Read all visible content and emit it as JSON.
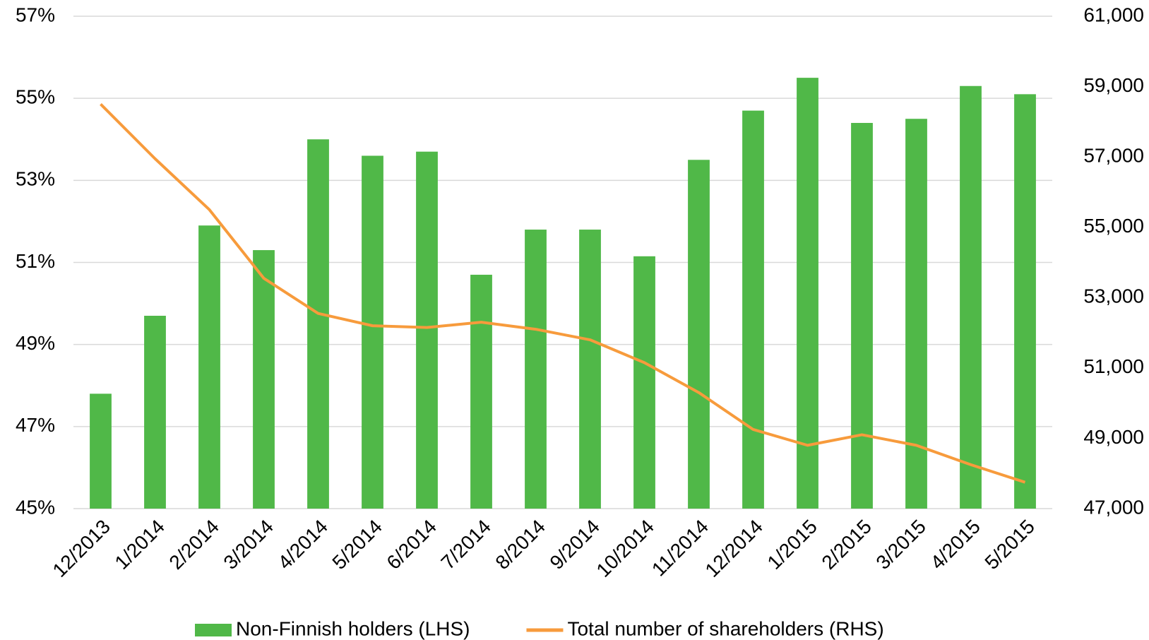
{
  "chart_data": {
    "type": "bar_line",
    "categories": [
      "12/2013",
      "1/2014",
      "2/2014",
      "3/2014",
      "4/2014",
      "5/2014",
      "6/2014",
      "7/2014",
      "8/2014",
      "9/2014",
      "10/2014",
      "11/2014",
      "12/2014",
      "1/2015",
      "2/2015",
      "3/2015",
      "4/2015",
      "5/2015"
    ],
    "series": [
      {
        "name": "Non-Finnish holders (LHS)",
        "color": "#50b848",
        "type": "bar",
        "values": [
          47.8,
          49.7,
          51.9,
          51.3,
          54.0,
          53.6,
          53.7,
          50.7,
          51.8,
          51.8,
          51.15,
          53.5,
          54.7,
          55.5,
          54.4,
          54.5,
          55.3,
          55.1
        ]
      },
      {
        "name": "Total number of shareholders (RHS)",
        "color": "#f79b3c",
        "type": "line",
        "axis": "y2",
        "values": [
          58500,
          56950,
          55500,
          53550,
          52550,
          52200,
          52150,
          52300,
          52100,
          51800,
          51150,
          50300,
          49250,
          48800,
          49100,
          48800,
          48250,
          47750
        ]
      }
    ],
    "ylim": [
      45,
      57
    ],
    "yticks": [
      {
        "value": 45,
        "label": "45%"
      },
      {
        "value": 47,
        "label": "47%"
      },
      {
        "value": 49,
        "label": "49%"
      },
      {
        "value": 51,
        "label": "51%"
      },
      {
        "value": 53,
        "label": "53%"
      },
      {
        "value": 55,
        "label": "55%"
      },
      {
        "value": 57,
        "label": "57%"
      }
    ],
    "y2lim": [
      47000,
      61000
    ],
    "y2ticks": [
      {
        "value": 47000,
        "label": "47,000"
      },
      {
        "value": 49000,
        "label": "49,000"
      },
      {
        "value": 51000,
        "label": "51,000"
      },
      {
        "value": 53000,
        "label": "53,000"
      },
      {
        "value": 55000,
        "label": "55,000"
      },
      {
        "value": 57000,
        "label": "57,000"
      },
      {
        "value": 59000,
        "label": "59,000"
      },
      {
        "value": 61000,
        "label": "61,000"
      }
    ],
    "grid": true,
    "legend": "bottom"
  }
}
